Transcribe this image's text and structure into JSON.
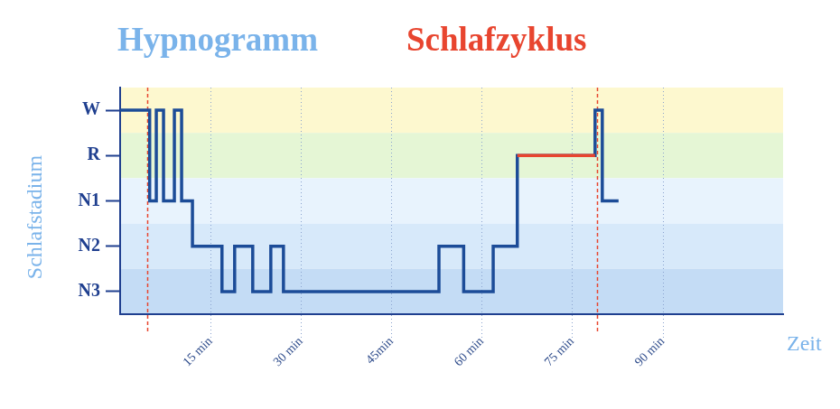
{
  "chart_data": {
    "type": "line",
    "title": "Hypnogramm",
    "subtitle": "Schlafzyklus",
    "x_label": "Zeit",
    "y_label": "Schlafstadium",
    "y_categories": [
      "W",
      "R",
      "N1",
      "N2",
      "N3"
    ],
    "xlim": [
      0,
      110
    ],
    "xticks": [
      {
        "value": 15,
        "label": "15 min"
      },
      {
        "value": 30,
        "label": "30 min"
      },
      {
        "value": 45,
        "label": "45min"
      },
      {
        "value": 60,
        "label": "60 min"
      },
      {
        "value": 75,
        "label": "75 min"
      },
      {
        "value": 90,
        "label": "90 min"
      }
    ],
    "grid": true,
    "series": [
      {
        "x": [
          0,
          4.9,
          6.0,
          7.2,
          9.0,
          10.2,
          12.0,
          16.9,
          19.0,
          22.0,
          25.0,
          27.1,
          52.9,
          57.0,
          61.9,
          65.9,
          78.8,
          80.0,
          82.7
        ],
        "values": [
          "W",
          "N1",
          "W",
          "N1",
          "W",
          "N1",
          "N2",
          "N3",
          "N2",
          "N3",
          "N2",
          "N3",
          "N2",
          "N3",
          "N2",
          "R",
          "W",
          "N1",
          "N1"
        ],
        "color": "#1c4c98",
        "line_style": "solid"
      },
      {
        "x": [
          65.9,
          78.8
        ],
        "values": [
          "R",
          "R"
        ],
        "color": "#e8452f",
        "line_style": "solid"
      }
    ],
    "cycle_bounds": {
      "x": [
        4.5,
        79.2
      ],
      "color": "#e8452f",
      "line_style": "dashed"
    }
  }
}
